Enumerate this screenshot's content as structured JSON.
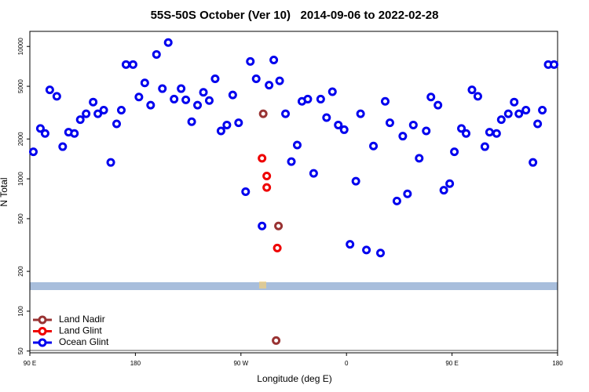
{
  "chart_data": {
    "type": "scatter",
    "title": "55S-50S October (Ver 10)   2014-09-06 to 2022-02-28",
    "xlabel": "Longitude (deg E)",
    "ylabel": "N Total",
    "yscale": "log",
    "xlim": [
      90,
      540
    ],
    "ylim": [
      48.5,
      13000
    ],
    "xticks": [
      {
        "value": 90,
        "label": "90 E"
      },
      180,
      {
        "value": 270,
        "label": "90 W"
      },
      {
        "value": 360,
        "label": "0"
      },
      {
        "value": 450,
        "label": "90 E"
      },
      {
        "value": 540,
        "label": "180"
      }
    ],
    "yticks": [
      50,
      100,
      200,
      500,
      1000,
      2000,
      5000,
      10000
    ],
    "legend": "lower left",
    "series": [
      {
        "name": "Land Nadir",
        "color": "#993333",
        "x": [
          289,
          302,
          300
        ],
        "values": [
          3100,
          440,
          60
        ]
      },
      {
        "name": "Land Glint",
        "color": "#ee0000",
        "x": [
          288,
          292,
          292,
          301
        ],
        "values": [
          1430,
          1050,
          860,
          300
        ]
      },
      {
        "name": "Ocean Glint",
        "color": "#0000ee",
        "x": [
          93,
          99,
          103,
          107,
          113,
          118,
          123,
          128,
          133,
          138,
          144,
          148,
          153,
          159,
          164,
          168,
          172,
          178,
          183,
          188,
          193,
          198,
          203,
          208,
          213,
          219,
          223,
          228,
          233,
          238,
          243,
          248,
          253,
          258,
          263,
          268,
          274,
          278,
          283,
          288,
          294,
          298,
          303,
          308,
          313,
          318,
          322,
          327,
          332,
          338,
          343,
          348,
          353,
          358,
          363,
          368,
          372,
          377,
          383,
          389,
          393,
          397,
          403,
          408,
          412,
          417,
          422,
          428,
          432,
          438,
          443,
          448,
          452,
          458,
          462,
          467,
          472,
          478,
          482,
          488,
          492,
          498,
          503,
          507,
          513,
          519,
          523,
          527,
          532,
          537
        ],
        "values": [
          1600,
          2400,
          2200,
          4700,
          4200,
          1750,
          2250,
          2200,
          2800,
          3100,
          3800,
          3100,
          3300,
          1330,
          2600,
          3300,
          7300,
          7300,
          4150,
          5300,
          3600,
          8700,
          4800,
          10700,
          4000,
          4800,
          3950,
          2700,
          3600,
          4500,
          3900,
          5700,
          2300,
          2550,
          4300,
          2650,
          800,
          7700,
          5700,
          440,
          5100,
          7900,
          5500,
          3100,
          1350,
          1800,
          3850,
          4000,
          1100,
          4000,
          2900,
          4550,
          2550,
          2350,
          320,
          960,
          3100,
          290,
          1770,
          275,
          3850,
          2650,
          680,
          2100,
          770,
          2550,
          1430,
          2300,
          4150,
          3600,
          820,
          920,
          1600,
          2400,
          2200,
          4700,
          4200,
          1750,
          2250,
          2200,
          2800,
          3100,
          3800,
          3100,
          3300,
          1330,
          2600,
          3300,
          7300,
          7300
        ]
      }
    ]
  }
}
